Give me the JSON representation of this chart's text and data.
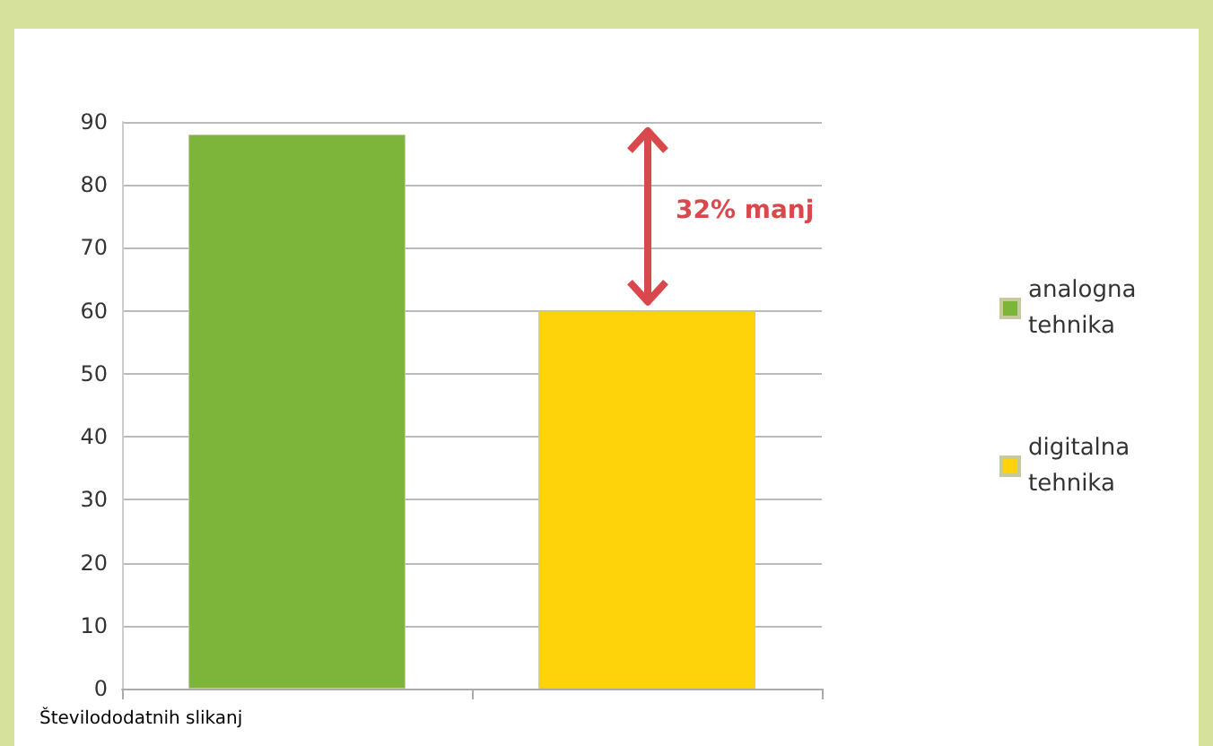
{
  "chart_data": {
    "type": "bar",
    "xlabel": "Številododatnih slikanj",
    "categories": [
      null,
      null
    ],
    "series": [
      {
        "name": "analogna tehnika",
        "color": "#7db43a",
        "values": [
          88,
          null
        ]
      },
      {
        "name": "digitalna tehnika",
        "color": "#ffd30a",
        "values": [
          null,
          60
        ]
      }
    ],
    "ylim": [
      0,
      90
    ],
    "yticks": [
      0,
      10,
      20,
      30,
      40,
      50,
      60,
      70,
      80,
      90
    ],
    "grid": "y",
    "legend": "right",
    "annotations": [
      "32% manj"
    ]
  }
}
